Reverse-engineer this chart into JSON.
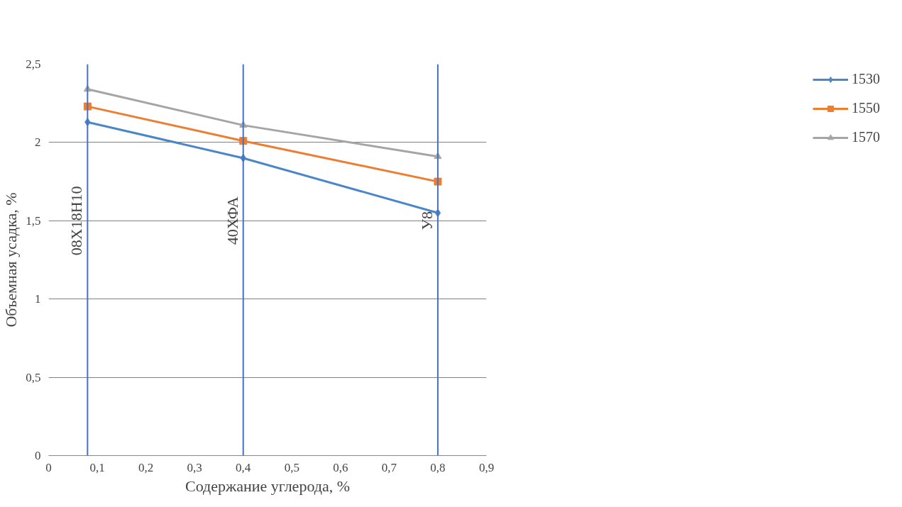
{
  "chart_data": {
    "type": "line",
    "xlabel": "Содержание углерода, %",
    "ylabel": "Объемная усадка, %",
    "x": [
      0.08,
      0.4,
      0.8
    ],
    "series": [
      {
        "name": "1530",
        "color": "#4a86c8",
        "values": [
          2.13,
          1.9,
          1.55
        ],
        "marker": "diamond"
      },
      {
        "name": "1550",
        "color": "#ed7d31",
        "values": [
          2.23,
          2.01,
          1.75
        ],
        "marker": "square"
      },
      {
        "name": "1570",
        "color": "#a5a5a5",
        "values": [
          2.34,
          2.11,
          1.91
        ],
        "marker": "triangle"
      }
    ],
    "xlim": [
      0,
      0.9
    ],
    "xticks": [
      {
        "value": 0,
        "label": "0"
      },
      {
        "value": 0.1,
        "label": "0,1"
      },
      {
        "value": 0.2,
        "label": "0,2"
      },
      {
        "value": 0.3,
        "label": "0,3"
      },
      {
        "value": 0.4,
        "label": "0,4"
      },
      {
        "value": 0.5,
        "label": "0,5"
      },
      {
        "value": 0.6,
        "label": "0,6"
      },
      {
        "value": 0.7,
        "label": "0,7"
      },
      {
        "value": 0.8,
        "label": "0,8"
      },
      {
        "value": 0.9,
        "label": "0,9"
      }
    ],
    "ylim": [
      0,
      2.5
    ],
    "yticks": [
      {
        "value": 0,
        "label": "0"
      },
      {
        "value": 0.5,
        "label": "0,5"
      },
      {
        "value": 1,
        "label": "1"
      },
      {
        "value": 1.5,
        "label": "1,5"
      },
      {
        "value": 2,
        "label": "2"
      },
      {
        "value": 2.5,
        "label": "2,5"
      }
    ],
    "ref_lines": [
      {
        "axis": "x",
        "value": 0.08,
        "label": "08Х18Н10",
        "color": "#4472c4"
      },
      {
        "axis": "x",
        "value": 0.4,
        "label": "40ХФА",
        "color": "#4472c4"
      },
      {
        "axis": "x",
        "value": 0.8,
        "label": "У8",
        "color": "#4472c4"
      }
    ],
    "grid": "y",
    "legend": "right",
    "line_style": "solid"
  }
}
